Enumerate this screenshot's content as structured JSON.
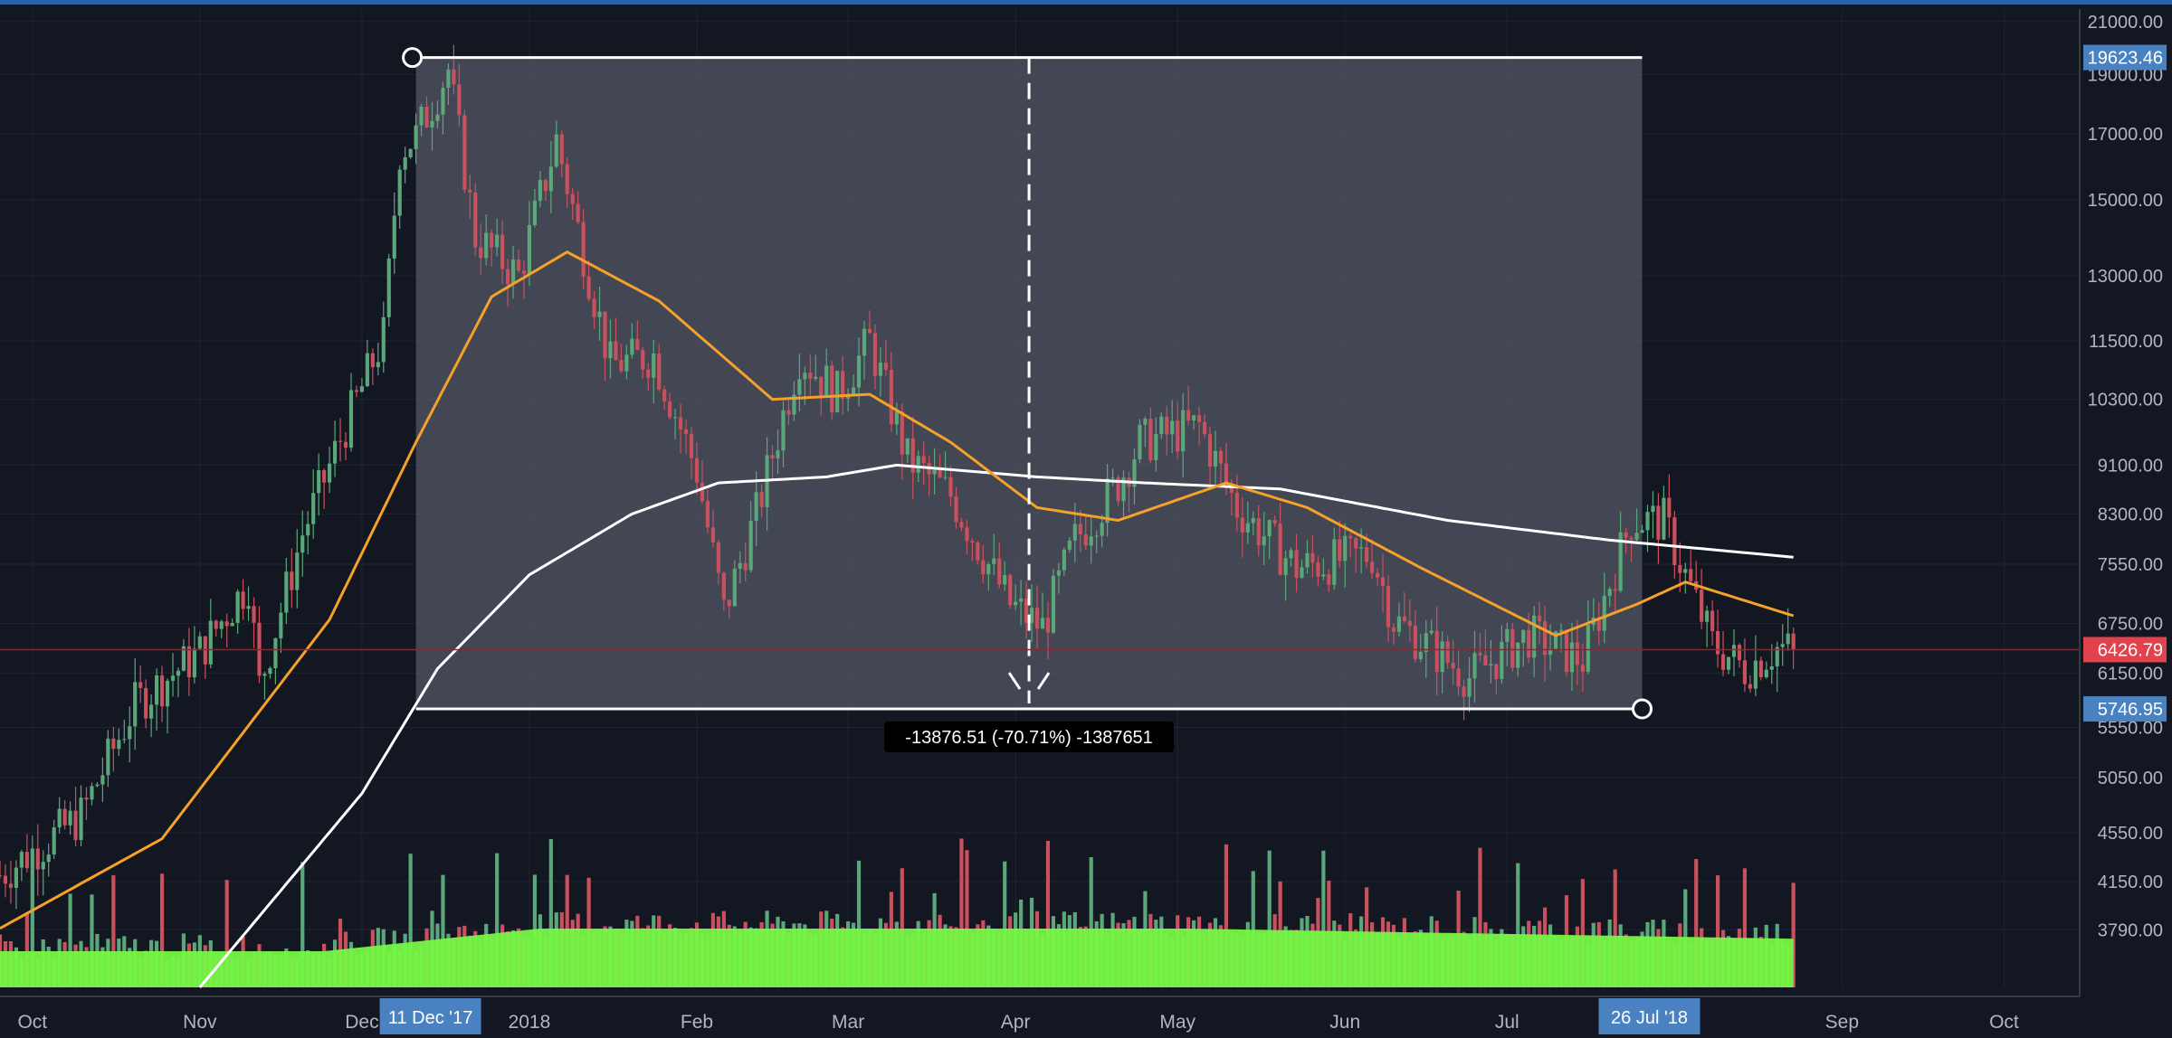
{
  "colors": {
    "background": "#131722",
    "grid": "#1f2433",
    "up_candle": "#5aa77a",
    "down_candle": "#c9515e",
    "ma_fast": "#f6a22a",
    "ma_slow": "#ffffff",
    "volume_ma_fill": "#76f545",
    "range_box": "#565a66",
    "badge_blue": "#4a82c1",
    "badge_red": "#e3414c",
    "top_border": "#2a63a8"
  },
  "toolbar": {
    "crosshair_icon": "crosshair-icon",
    "flag_icon": "flag-icon"
  },
  "price_axis": {
    "ticks": [
      "21000.00",
      "19000.00",
      "17000.00",
      "15000.00",
      "13000.00",
      "11500.00",
      "10300.00",
      "9100.00",
      "8300.00",
      "7550.00",
      "6750.00",
      "6150.00",
      "5550.00",
      "5050.00",
      "4550.00",
      "4150.00",
      "3790.00"
    ],
    "high_badge": "19623.46",
    "current_badge": "6426.79",
    "low_badge": "5746.95"
  },
  "time_axis": {
    "ticks": [
      "Oct",
      "Nov",
      "Dec",
      "2018",
      "Feb",
      "Mar",
      "Apr",
      "May",
      "Jun",
      "Jul",
      "Sep",
      "Oct"
    ],
    "start_badge": "11 Dec '17",
    "end_badge": "26 Jul '18"
  },
  "measure": {
    "label": "-13876.51 (-70.71%) -1387651"
  },
  "chart_data": {
    "type": "candlestick",
    "symbol_note": "",
    "y_scale": "log",
    "ylim": [
      3400,
      21500
    ],
    "x_range": [
      "2017-09-25",
      "2018-10-15"
    ],
    "price_path": [
      [
        "2017-09-25",
        4200
      ],
      [
        "2017-10-10",
        4700
      ],
      [
        "2017-10-20",
        5800
      ],
      [
        "2017-11-01",
        6400
      ],
      [
        "2017-11-10",
        7300
      ],
      [
        "2017-11-12",
        6000
      ],
      [
        "2017-11-20",
        8000
      ],
      [
        "2017-11-28",
        9800
      ],
      [
        "2017-12-05",
        11600
      ],
      [
        "2017-12-08",
        16500
      ],
      [
        "2017-12-11",
        16900
      ],
      [
        "2017-12-17",
        19200
      ],
      [
        "2017-12-22",
        14000
      ],
      [
        "2017-12-30",
        13000
      ],
      [
        "2018-01-06",
        16800
      ],
      [
        "2018-01-16",
        11000
      ],
      [
        "2018-01-24",
        11200
      ],
      [
        "2018-02-01",
        9000
      ],
      [
        "2018-02-06",
        6900
      ],
      [
        "2018-02-12",
        8300
      ],
      [
        "2018-02-20",
        11200
      ],
      [
        "2018-02-27",
        10400
      ],
      [
        "2018-03-05",
        11500
      ],
      [
        "2018-03-12",
        9200
      ],
      [
        "2018-03-20",
        8600
      ],
      [
        "2018-03-31",
        7000
      ],
      [
        "2018-04-06",
        6700
      ],
      [
        "2018-04-12",
        7900
      ],
      [
        "2018-04-20",
        8800
      ],
      [
        "2018-04-24",
        9500
      ],
      [
        "2018-05-05",
        9800
      ],
      [
        "2018-05-12",
        8400
      ],
      [
        "2018-05-23",
        7500
      ],
      [
        "2018-06-06",
        7700
      ],
      [
        "2018-06-10",
        6800
      ],
      [
        "2018-06-24",
        6100
      ],
      [
        "2018-07-05",
        6600
      ],
      [
        "2018-07-15",
        6300
      ],
      [
        "2018-07-24",
        8200
      ],
      [
        "2018-07-30",
        8200
      ],
      [
        "2018-08-08",
        6500
      ],
      [
        "2018-08-14",
        6200
      ],
      [
        "2018-08-20",
        6450
      ],
      [
        "2018-08-23",
        6426.79
      ]
    ],
    "ma_fast_path": [
      [
        "2017-09-25",
        3800
      ],
      [
        "2017-10-25",
        4500
      ],
      [
        "2017-11-25",
        6800
      ],
      [
        "2017-12-11",
        9500
      ],
      [
        "2017-12-25",
        12500
      ],
      [
        "2018-01-08",
        13600
      ],
      [
        "2018-01-25",
        12400
      ],
      [
        "2018-02-15",
        10300
      ],
      [
        "2018-03-05",
        10400
      ],
      [
        "2018-03-20",
        9500
      ],
      [
        "2018-04-05",
        8400
      ],
      [
        "2018-04-20",
        8200
      ],
      [
        "2018-05-10",
        8800
      ],
      [
        "2018-05-25",
        8400
      ],
      [
        "2018-06-15",
        7500
      ],
      [
        "2018-07-10",
        6600
      ],
      [
        "2018-07-25",
        7000
      ],
      [
        "2018-08-03",
        7300
      ],
      [
        "2018-08-23",
        6850
      ]
    ],
    "ma_slow_path": [
      [
        "2017-11-01",
        3400
      ],
      [
        "2017-12-01",
        4900
      ],
      [
        "2017-12-15",
        6200
      ],
      [
        "2018-01-01",
        7400
      ],
      [
        "2018-01-20",
        8300
      ],
      [
        "2018-02-05",
        8800
      ],
      [
        "2018-02-25",
        8900
      ],
      [
        "2018-03-10",
        9100
      ],
      [
        "2018-04-05",
        8900
      ],
      [
        "2018-04-25",
        8800
      ],
      [
        "2018-05-20",
        8700
      ],
      [
        "2018-06-20",
        8200
      ],
      [
        "2018-07-20",
        7900
      ],
      [
        "2018-08-23",
        7650
      ]
    ],
    "range_measure": {
      "start": "2017-12-11",
      "end": "2018-07-26",
      "high": 19623.46,
      "low": 5746.95,
      "change": -13876.51,
      "percent": -70.71
    },
    "volume_note": "",
    "grid": true
  }
}
